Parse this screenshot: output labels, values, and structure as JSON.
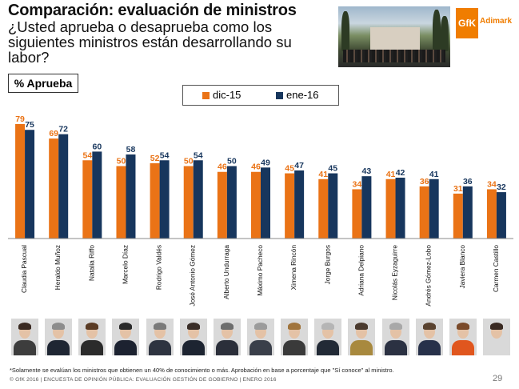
{
  "header": {
    "title": "Comparación: evaluación de ministros",
    "subtitle": "¿Usted aprueba o desaprueba como los siguientes ministros están desarrollando su labor?",
    "logo_text": "GfK",
    "logo_subtext": "Adimark"
  },
  "aprueba_label": "% Aprueba",
  "colors": {
    "dic15": "#ea7316",
    "ene16": "#17365d",
    "brand": "#f07d00"
  },
  "chart_data": {
    "type": "bar",
    "categories": [
      "Claudia Pascual",
      "Heraldo Muñoz",
      "Natalia Riffo",
      "Marcelo Díaz",
      "Rodrigo Valdés",
      "José Antonio Gómez",
      "Alberto Undurraga",
      "Máximo Pacheco",
      "Ximena Rincón",
      "Jorge Burgos",
      "Adriana Delpiano",
      "Nicolás Eyzaguirre",
      "Andrés Gómez-Lobo",
      "Javiera Blanco",
      "Carmen Castillo"
    ],
    "series": [
      {
        "name": "dic-15",
        "values": [
          79,
          69,
          54,
          50,
          52,
          50,
          46,
          46,
          45,
          41,
          34,
          41,
          36,
          31,
          34
        ]
      },
      {
        "name": "ene-16",
        "values": [
          75,
          72,
          60,
          58,
          54,
          54,
          50,
          49,
          47,
          45,
          43,
          42,
          41,
          36,
          32
        ]
      }
    ],
    "ylim": [
      0,
      80
    ],
    "grid": false,
    "legend": "top-center"
  },
  "footnote": "*Solamente se evalúan los ministros que obtienen un 40% de conocimiento o más. Aprobación en base a porcentaje que \"Sí conoce\" al ministro.",
  "footer": "© GfK 2016 | ENCUESTA DE OPINIÓN PÚBLICA: EVALUACIÓN GESTIÓN DE GOBIERNO | ENERO 2016",
  "page_number": "29"
}
